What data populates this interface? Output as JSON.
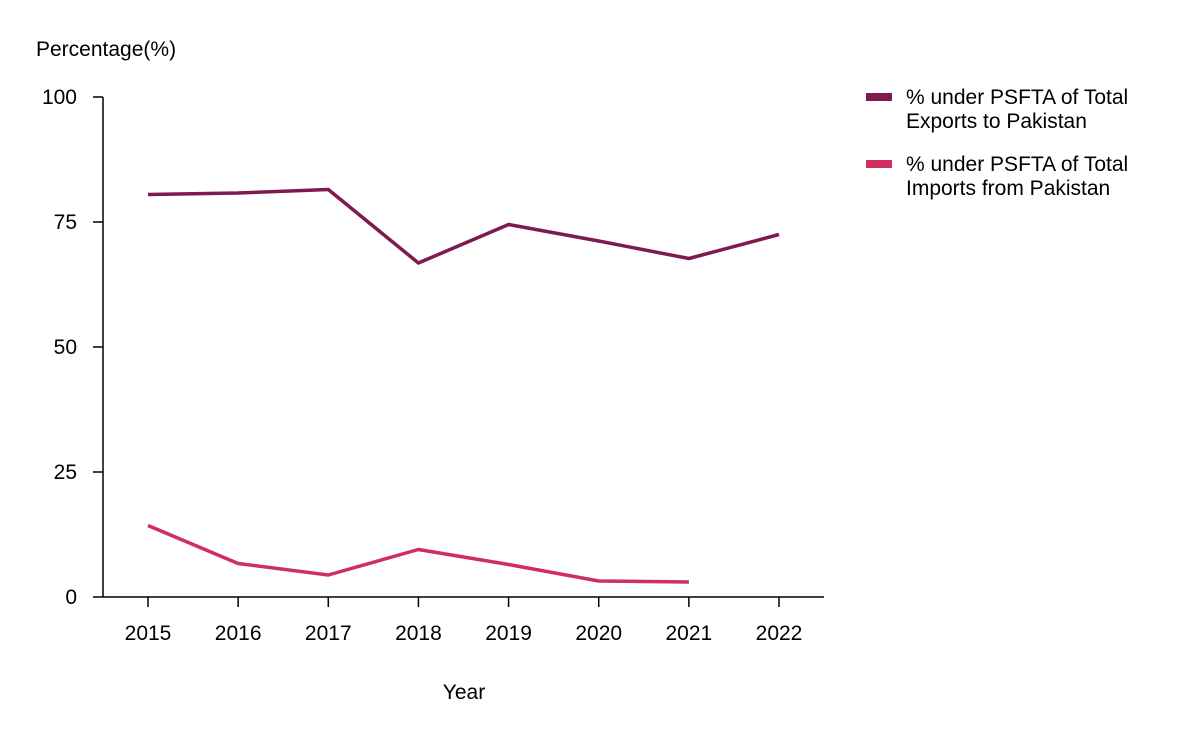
{
  "chart_data": {
    "type": "line",
    "title": "",
    "ylabel": "Percentage(%)",
    "xlabel": "Year",
    "ylim": [
      0,
      100
    ],
    "yticks": [
      0,
      25,
      50,
      75,
      100
    ],
    "x": [
      "2015",
      "2016",
      "2017",
      "2018",
      "2019",
      "2020",
      "2021",
      "2022"
    ],
    "grid": false,
    "legend_position": "top-right",
    "series": [
      {
        "name": "% under PSFTA of Total Exports to Pakistan",
        "legend_lines": [
          "% under PSFTA of Total",
          "Exports to Pakistan"
        ],
        "color": "#7d1a4f",
        "values": [
          80.5,
          80.8,
          81.5,
          66.8,
          74.5,
          71.2,
          67.7,
          72.5
        ]
      },
      {
        "name": "% under PSFTA of Total Imports from Pakistan",
        "legend_lines": [
          "% under PSFTA of Total",
          "Imports from Pakistan"
        ],
        "color": "#cf2e5f",
        "values": [
          14.3,
          6.7,
          4.4,
          9.5,
          6.5,
          3.2,
          3.0,
          null
        ]
      }
    ]
  }
}
